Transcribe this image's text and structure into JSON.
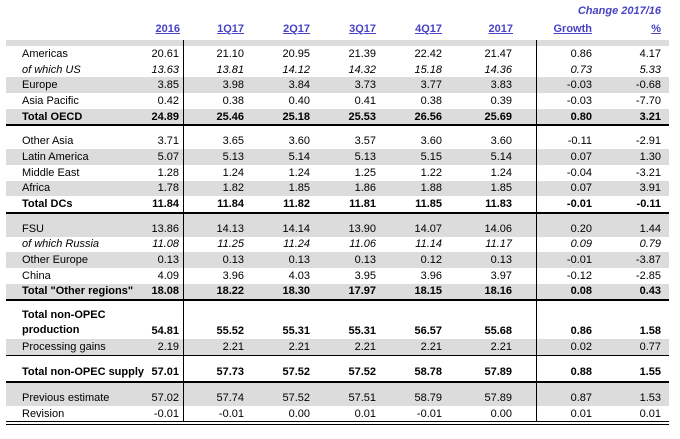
{
  "title": {
    "change_header": "Change 2017/16"
  },
  "header": {
    "columns": [
      "2016",
      "1Q17",
      "2Q17",
      "3Q17",
      "4Q17",
      "2017",
      "Growth",
      "%"
    ]
  },
  "colors": {
    "accent_blue": "#4843c5",
    "stripe_gray": "#dcdcdc",
    "line_black": "#000000"
  },
  "table": {
    "rows": [
      {
        "type": "spacer",
        "bg": "gray",
        "h": 6
      },
      {
        "label": "Americas",
        "bg": "white",
        "values": [
          "20.61",
          "21.10",
          "20.95",
          "21.39",
          "22.42",
          "21.47",
          "0.86",
          "4.17"
        ]
      },
      {
        "label": "of which US",
        "bg": "white",
        "style": "sub",
        "values": [
          "13.63",
          "13.81",
          "14.12",
          "14.32",
          "15.18",
          "14.36",
          "0.73",
          "5.33"
        ]
      },
      {
        "label": "Europe",
        "bg": "gray",
        "values": [
          "3.85",
          "3.98",
          "3.84",
          "3.73",
          "3.77",
          "3.83",
          "-0.03",
          "-0.68"
        ]
      },
      {
        "label": "Asia Pacific",
        "bg": "white",
        "values": [
          "0.42",
          "0.38",
          "0.40",
          "0.41",
          "0.38",
          "0.39",
          "-0.03",
          "-7.70"
        ]
      },
      {
        "label": "Total OECD",
        "bg": "gray",
        "style": "total",
        "border": "thick",
        "values": [
          "24.89",
          "25.46",
          "25.18",
          "25.53",
          "26.56",
          "25.69",
          "0.80",
          "3.21"
        ]
      },
      {
        "type": "spacer",
        "bg": "white",
        "h": 7
      },
      {
        "label": "Other Asia",
        "bg": "white",
        "values": [
          "3.71",
          "3.65",
          "3.60",
          "3.57",
          "3.60",
          "3.60",
          "-0.11",
          "-2.91"
        ]
      },
      {
        "label": "Latin America",
        "bg": "gray",
        "values": [
          "5.07",
          "5.13",
          "5.14",
          "5.13",
          "5.15",
          "5.14",
          "0.07",
          "1.30"
        ]
      },
      {
        "label": "Middle East",
        "bg": "white",
        "values": [
          "1.28",
          "1.24",
          "1.24",
          "1.25",
          "1.22",
          "1.24",
          "-0.04",
          "-3.21"
        ]
      },
      {
        "label": "Africa",
        "bg": "gray",
        "values": [
          "1.78",
          "1.82",
          "1.85",
          "1.86",
          "1.88",
          "1.85",
          "0.07",
          "3.91"
        ]
      },
      {
        "label": "Total DCs",
        "bg": "white",
        "style": "total",
        "border": "thick",
        "values": [
          "11.84",
          "11.84",
          "11.82",
          "11.81",
          "11.85",
          "11.83",
          "-0.01",
          "-0.11"
        ]
      },
      {
        "type": "spacer",
        "bg": "gray",
        "h": 7
      },
      {
        "label": "FSU",
        "bg": "gray",
        "values": [
          "13.86",
          "14.13",
          "14.14",
          "13.90",
          "14.07",
          "14.06",
          "0.20",
          "1.44"
        ]
      },
      {
        "label": "of which Russia",
        "bg": "white",
        "style": "sub",
        "values": [
          "11.08",
          "11.25",
          "11.24",
          "11.06",
          "11.14",
          "11.17",
          "0.09",
          "0.79"
        ]
      },
      {
        "label": "Other Europe",
        "bg": "gray",
        "values": [
          "0.13",
          "0.13",
          "0.13",
          "0.13",
          "0.12",
          "0.13",
          "-0.01",
          "-3.87"
        ]
      },
      {
        "label": "China",
        "bg": "white",
        "values": [
          "4.09",
          "3.96",
          "4.03",
          "3.95",
          "3.96",
          "3.97",
          "-0.12",
          "-2.85"
        ]
      },
      {
        "label": "Total \"Other regions\"",
        "bg": "gray",
        "style": "total",
        "border": "thick",
        "values": [
          "18.08",
          "18.22",
          "18.30",
          "17.97",
          "18.15",
          "18.16",
          "0.08",
          "0.43"
        ]
      },
      {
        "type": "spacer",
        "bg": "white",
        "h": 7
      },
      {
        "label": "Total non-OPEC",
        "label2": "production",
        "bg": "white",
        "style": "total",
        "tall": true,
        "values": [
          "54.81",
          "55.52",
          "55.31",
          "55.31",
          "56.57",
          "55.68",
          "0.86",
          "1.58"
        ]
      },
      {
        "label": "Processing gains",
        "bg": "gray",
        "border": "medium",
        "values": [
          "2.19",
          "2.21",
          "2.21",
          "2.21",
          "2.21",
          "2.21",
          "0.02",
          "0.77"
        ]
      },
      {
        "type": "spacer",
        "bg": "white",
        "h": 7
      },
      {
        "label": "Total non-OPEC supply",
        "bg": "white",
        "style": "total",
        "border": "thick",
        "supply": true,
        "values": [
          "57.01",
          "57.73",
          "57.52",
          "57.52",
          "58.78",
          "57.89",
          "0.88",
          "1.55"
        ]
      },
      {
        "type": "spacer",
        "bg": "gray",
        "h": 7
      },
      {
        "label": "Previous estimate",
        "bg": "gray",
        "values": [
          "57.02",
          "57.74",
          "57.52",
          "57.51",
          "58.79",
          "57.89",
          "0.87",
          "1.53"
        ]
      },
      {
        "label": "Revision",
        "bg": "white",
        "values": [
          "-0.01",
          "-0.01",
          "0.00",
          "0.01",
          "-0.01",
          "0.00",
          "0.01",
          "0.01"
        ]
      }
    ]
  }
}
